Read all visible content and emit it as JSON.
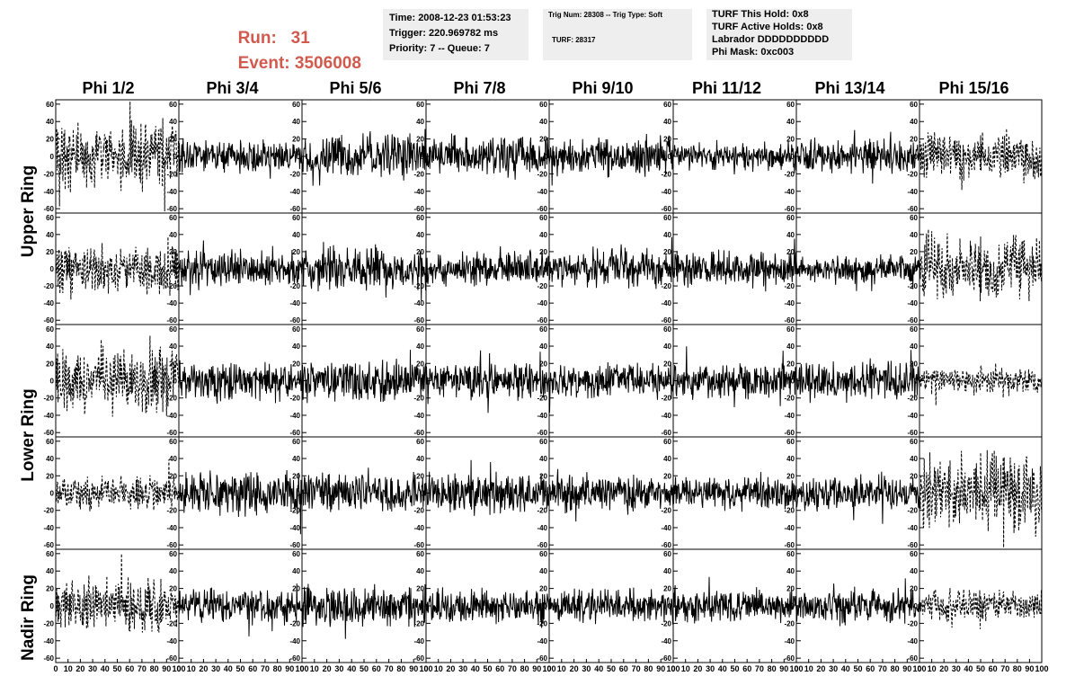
{
  "header": {
    "run_label": "Run:",
    "run_value": "31",
    "event_label": "Event:",
    "event_value": "3506008",
    "time": "Time: 2008-12-23 01:53:23",
    "trigger": "Trigger: 220.969782 ms",
    "priority": "Priority: 7 -- Queue: 7",
    "trig_num": "Trig Num: 28308 -- Trig Type: Soft",
    "turf": "TURF: 28317",
    "turf_this_hold": "TURF This Hold: 0x8",
    "turf_active_holds": "TURF Active Holds: 0x8",
    "labrador": "Labrador DDDDDDDDDD",
    "phi_mask": "Phi Mask: 0xc003"
  },
  "colors": {
    "run_text": "#d05a4e",
    "info_bg": "#eeeeee",
    "trace": "#000000"
  },
  "columns": [
    "Phi 1/2",
    "Phi 3/4",
    "Phi 5/6",
    "Phi 7/8",
    "Phi 9/10",
    "Phi 11/12",
    "Phi 13/14",
    "Phi 15/16"
  ],
  "ring_labels": [
    "Upper Ring",
    "Lower Ring",
    "Nadir Ring"
  ],
  "chart_data": {
    "type": "line",
    "layout": "5 rows x 8 columns of waveform panels",
    "xlim": [
      0,
      100
    ],
    "ylim": [
      -65,
      65
    ],
    "x_tick_labels": [
      "0",
      "10",
      "20",
      "30",
      "40",
      "50",
      "60",
      "70",
      "80",
      "90",
      "100"
    ],
    "y_tick_labels": [
      "60",
      "40",
      "20",
      "0",
      "-20",
      "-40",
      "-60"
    ],
    "dashed_columns": [
      0,
      7
    ],
    "panel_amplitude": [
      [
        30,
        15,
        20,
        18,
        18,
        12,
        15,
        20
      ],
      [
        22,
        18,
        20,
        16,
        18,
        16,
        12,
        30
      ],
      [
        28,
        18,
        20,
        16,
        15,
        16,
        18,
        12
      ],
      [
        15,
        20,
        18,
        18,
        16,
        15,
        15,
        35
      ],
      [
        25,
        15,
        18,
        16,
        15,
        15,
        15,
        15
      ]
    ]
  }
}
